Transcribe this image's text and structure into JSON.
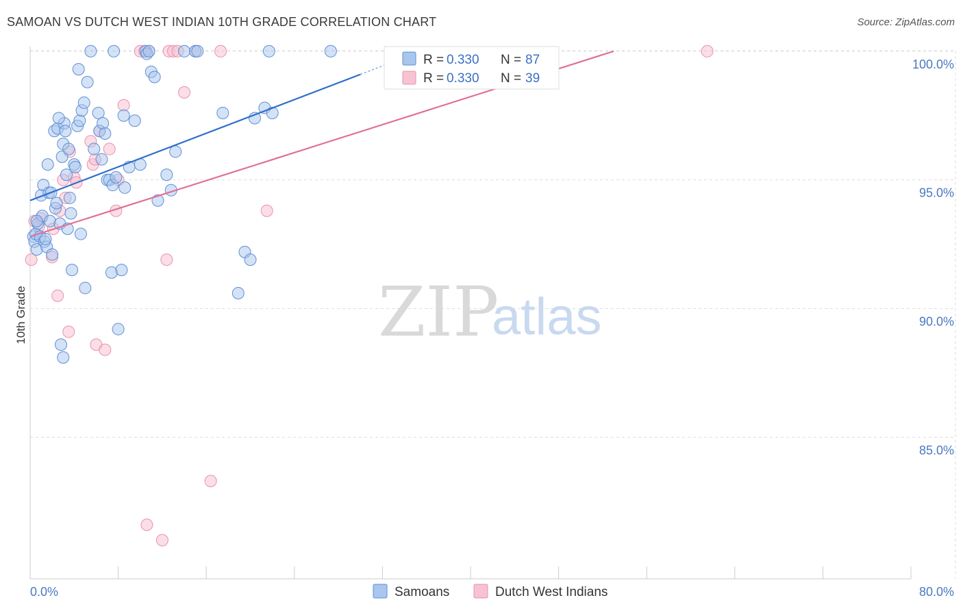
{
  "header": {
    "title": "SAMOAN VS DUTCH WEST INDIAN 10TH GRADE CORRELATION CHART",
    "source": "Source: ZipAtlas.com"
  },
  "watermark": {
    "zip": "ZIP",
    "atlas": "atlas"
  },
  "colors": {
    "samoan_fill": "#a9c6ee",
    "samoan_stroke": "#5b8fd6",
    "samoan_line": "#2f6fca",
    "dutch_fill": "#f7c2d2",
    "dutch_stroke": "#e891ae",
    "dutch_line": "#e07098",
    "grid": "#dddddd",
    "axis_text": "#4a78c2"
  },
  "legend_top": {
    "samoan": {
      "r_label": "R = ",
      "r_value": "0.330",
      "n_label": "N = ",
      "n_value": "87"
    },
    "dutch": {
      "r_label": "R = ",
      "r_value": "0.330",
      "n_label": "N = ",
      "n_value": "39"
    }
  },
  "legend_bottom": {
    "samoan": "Samoans",
    "dutch": "Dutch West Indians"
  },
  "chart_data": {
    "type": "scatter",
    "title": "SAMOAN VS DUTCH WEST INDIAN 10TH GRADE CORRELATION CHART",
    "xlabel": "",
    "ylabel": "10th Grade",
    "xlim": [
      0,
      80
    ],
    "ylim": [
      79.5,
      100.5
    ],
    "x_tick_labels": [
      "0.0%",
      "80.0%"
    ],
    "y_ticks": [
      100,
      95,
      90,
      85
    ],
    "y_tick_labels": [
      "100.0%",
      "95.0%",
      "90.0%",
      "85.0%"
    ],
    "grid": true,
    "series": [
      {
        "name": "Samoans",
        "r": 0.33,
        "n": 87,
        "trend": {
          "x": [
            0,
            30
          ],
          "y": [
            94.2,
            99.1
          ],
          "dashed_extension_to_x": 35
        },
        "points": [
          [
            0.3,
            92.8
          ],
          [
            0.4,
            92.6
          ],
          [
            0.5,
            92.9
          ],
          [
            0.6,
            92.3
          ],
          [
            0.7,
            93.3
          ],
          [
            0.9,
            92.8
          ],
          [
            1.0,
            94.4
          ],
          [
            1.1,
            93.6
          ],
          [
            1.2,
            94.8
          ],
          [
            1.3,
            92.6
          ],
          [
            1.5,
            92.4
          ],
          [
            1.7,
            94.5
          ],
          [
            1.8,
            93.4
          ],
          [
            1.9,
            94.5
          ],
          [
            2.0,
            92.1
          ],
          [
            2.2,
            96.9
          ],
          [
            2.3,
            93.9
          ],
          [
            2.5,
            97.0
          ],
          [
            2.7,
            93.3
          ],
          [
            2.8,
            88.6
          ],
          [
            2.9,
            95.9
          ],
          [
            3.0,
            96.4
          ],
          [
            3.1,
            97.2
          ],
          [
            3.2,
            96.9
          ],
          [
            3.3,
            95.2
          ],
          [
            3.4,
            93.1
          ],
          [
            3.5,
            96.2
          ],
          [
            3.6,
            94.3
          ],
          [
            3.7,
            93.7
          ],
          [
            3.8,
            91.5
          ],
          [
            4.0,
            95.6
          ],
          [
            4.1,
            95.5
          ],
          [
            4.3,
            97.1
          ],
          [
            4.4,
            99.3
          ],
          [
            4.5,
            97.3
          ],
          [
            4.7,
            97.7
          ],
          [
            4.9,
            98.0
          ],
          [
            5.2,
            98.8
          ],
          [
            5.5,
            100.0
          ],
          [
            6.2,
            97.6
          ],
          [
            6.3,
            96.9
          ],
          [
            6.5,
            95.8
          ],
          [
            6.6,
            97.2
          ],
          [
            7.0,
            95.0
          ],
          [
            7.2,
            95.0
          ],
          [
            7.4,
            91.4
          ],
          [
            7.5,
            94.8
          ],
          [
            7.6,
            100.0
          ],
          [
            7.8,
            95.1
          ],
          [
            8.3,
            91.5
          ],
          [
            8.5,
            97.5
          ],
          [
            8.6,
            94.7
          ],
          [
            9.0,
            95.5
          ],
          [
            9.5,
            97.3
          ],
          [
            10.0,
            95.6
          ],
          [
            10.5,
            100.0
          ],
          [
            10.6,
            99.9
          ],
          [
            10.8,
            100.0
          ],
          [
            11.0,
            99.2
          ],
          [
            11.3,
            99.0
          ],
          [
            11.6,
            94.2
          ],
          [
            12.4,
            95.2
          ],
          [
            12.8,
            94.6
          ],
          [
            13.2,
            96.1
          ],
          [
            14.0,
            100.0
          ],
          [
            15.0,
            100.0
          ],
          [
            15.2,
            100.0
          ],
          [
            17.5,
            97.6
          ],
          [
            18.9,
            90.6
          ],
          [
            19.5,
            92.2
          ],
          [
            20.0,
            91.9
          ],
          [
            20.4,
            97.4
          ],
          [
            21.3,
            97.8
          ],
          [
            21.7,
            100.0
          ],
          [
            22.0,
            97.6
          ],
          [
            27.3,
            100.0
          ],
          [
            0.6,
            93.4
          ],
          [
            1.4,
            92.7
          ],
          [
            2.6,
            97.4
          ],
          [
            5.0,
            90.8
          ],
          [
            5.8,
            96.2
          ],
          [
            8.0,
            89.2
          ],
          [
            3.0,
            88.1
          ],
          [
            1.6,
            95.6
          ],
          [
            4.6,
            92.9
          ],
          [
            6.8,
            96.8
          ],
          [
            2.4,
            94.1
          ]
        ]
      },
      {
        "name": "Dutch West Indians",
        "r": 0.33,
        "n": 39,
        "trend": {
          "x": [
            0,
            53
          ],
          "y": [
            92.8,
            100.0
          ]
        },
        "points": [
          [
            0.1,
            91.9
          ],
          [
            0.4,
            93.4
          ],
          [
            0.8,
            93.2
          ],
          [
            1.0,
            93.5
          ],
          [
            2.0,
            92.0
          ],
          [
            2.1,
            93.1
          ],
          [
            2.5,
            90.5
          ],
          [
            2.7,
            93.8
          ],
          [
            3.0,
            95.0
          ],
          [
            3.2,
            94.3
          ],
          [
            3.5,
            89.1
          ],
          [
            3.6,
            96.1
          ],
          [
            4.0,
            95.1
          ],
          [
            4.2,
            94.9
          ],
          [
            5.5,
            96.5
          ],
          [
            5.7,
            95.6
          ],
          [
            5.9,
            95.8
          ],
          [
            6.0,
            88.6
          ],
          [
            6.3,
            96.9
          ],
          [
            6.8,
            88.4
          ],
          [
            7.2,
            96.2
          ],
          [
            7.8,
            93.8
          ],
          [
            8.0,
            95.0
          ],
          [
            8.5,
            97.9
          ],
          [
            10.0,
            100.0
          ],
          [
            10.4,
            100.0
          ],
          [
            10.8,
            100.0
          ],
          [
            10.6,
            81.6
          ],
          [
            12.4,
            91.9
          ],
          [
            12.6,
            100.0
          ],
          [
            12.0,
            81.0
          ],
          [
            13.0,
            100.0
          ],
          [
            13.4,
            100.0
          ],
          [
            14.0,
            98.4
          ],
          [
            15.0,
            100.0
          ],
          [
            16.4,
            83.3
          ],
          [
            17.3,
            100.0
          ],
          [
            21.5,
            93.8
          ],
          [
            61.5,
            100.0
          ]
        ]
      }
    ]
  }
}
